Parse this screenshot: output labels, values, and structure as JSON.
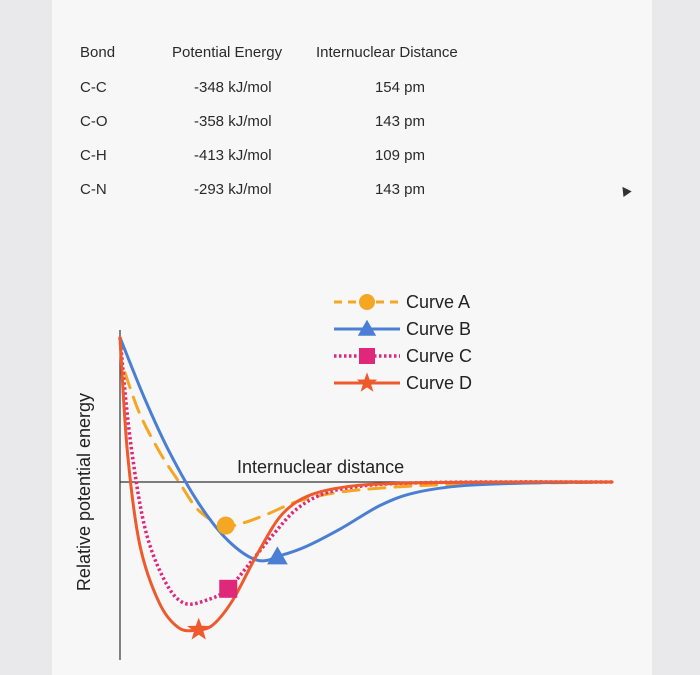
{
  "table": {
    "headers": [
      "Bond",
      "Potential Energy",
      "Internuclear Distance"
    ],
    "rows": [
      {
        "bond": "C-C",
        "energy": "-348 kJ/mol",
        "distance": "154 pm"
      },
      {
        "bond": "C-O",
        "energy": "-358 kJ/mol",
        "distance": "143 pm"
      },
      {
        "bond": "C-H",
        "energy": "-413 kJ/mol",
        "distance": "109 pm"
      },
      {
        "bond": "C-N",
        "energy": "-293 kJ/mol",
        "distance": "143 pm"
      }
    ]
  },
  "chart_data": {
    "type": "line",
    "title": "",
    "xlabel": "Internuclear distance",
    "ylabel": "Relative potential energy",
    "grid": false,
    "legend_position": "top-right",
    "x_range": [
      0,
      10
    ],
    "y_range": [
      -1,
      1
    ],
    "series": [
      {
        "name": "Curve A",
        "style": "dashed",
        "marker": "circle",
        "color": "#f5a623",
        "x": [
          0.1,
          0.4,
          0.8,
          1.2,
          1.6,
          2.1,
          2.5,
          3.0,
          3.6,
          4.4,
          5.5,
          7.0,
          10.0
        ],
        "y": [
          0.72,
          0.45,
          0.2,
          0.0,
          -0.16,
          -0.245,
          -0.23,
          -0.18,
          -0.11,
          -0.06,
          -0.03,
          -0.012,
          0.0
        ],
        "marker_point": {
          "x": 2.15,
          "y": -0.245
        }
      },
      {
        "name": "Curve B",
        "style": "solid",
        "marker": "triangle",
        "color": "#4a7fd4",
        "x": [
          0.0,
          0.5,
          1.0,
          1.6,
          2.2,
          2.8,
          3.3,
          3.8,
          4.5,
          5.3,
          6.0,
          7.0,
          8.5,
          10.0
        ],
        "y": [
          0.95,
          0.55,
          0.2,
          -0.12,
          -0.33,
          -0.44,
          -0.41,
          -0.36,
          -0.26,
          -0.13,
          -0.06,
          -0.02,
          -0.004,
          0.0
        ],
        "marker_point": {
          "x": 3.2,
          "y": -0.42
        }
      },
      {
        "name": "Curve C",
        "style": "dotted",
        "marker": "square",
        "color": "#e0287a",
        "x": [
          0.0,
          0.2,
          0.5,
          0.9,
          1.3,
          1.8,
          2.2,
          2.6,
          3.1,
          3.6,
          4.2,
          5.0,
          6.0,
          7.5,
          10.0
        ],
        "y": [
          0.95,
          0.3,
          -0.25,
          -0.55,
          -0.68,
          -0.66,
          -0.6,
          -0.47,
          -0.3,
          -0.15,
          -0.06,
          -0.02,
          -0.005,
          0.0,
          0.0
        ],
        "marker_point": {
          "x": 2.2,
          "y": -0.6
        }
      },
      {
        "name": "Curve D",
        "style": "solid",
        "marker": "star",
        "color": "#ef5a2d",
        "x": [
          0.0,
          0.15,
          0.4,
          0.8,
          1.2,
          1.6,
          1.9,
          2.3,
          2.8,
          3.3,
          3.9,
          4.8,
          6.0,
          8.0,
          10.0
        ],
        "y": [
          0.95,
          0.2,
          -0.35,
          -0.68,
          -0.82,
          -0.83,
          -0.8,
          -0.66,
          -0.4,
          -0.18,
          -0.07,
          -0.02,
          -0.005,
          0.0,
          0.0
        ],
        "marker_point": {
          "x": 1.6,
          "y": -0.83
        }
      }
    ]
  }
}
